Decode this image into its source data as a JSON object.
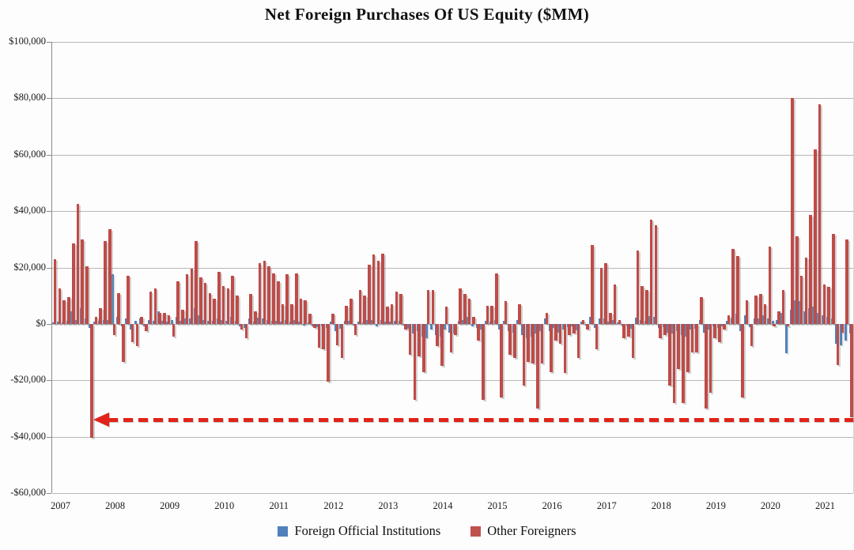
{
  "title": "Net Foreign Purchases Of US Equity ($MM)",
  "y_axis": {
    "labels": [
      {
        "text": "$100,000",
        "value": 100000
      },
      {
        "text": "$80,000",
        "value": 80000
      },
      {
        "text": "$60,000",
        "value": 60000
      },
      {
        "text": "$40,000",
        "value": 40000
      },
      {
        "text": "$20,000",
        "value": 20000
      },
      {
        "text": "$0",
        "value": 0
      },
      {
        "text": "-$20,000",
        "value": -20000
      },
      {
        "text": "-$40,000",
        "value": -40000
      },
      {
        "text": "-$60,000",
        "value": -60000
      }
    ]
  },
  "x_axis": {
    "labels": [
      "2007",
      "2008",
      "2009",
      "2010",
      "2011",
      "2012",
      "2013",
      "2014",
      "2015",
      "2016",
      "2017",
      "2018",
      "2019",
      "2020",
      "2021"
    ]
  },
  "legend": [
    {
      "label": "Foreign Official Institutions",
      "color": "#4f81bd"
    },
    {
      "label": "Other Foreigners",
      "color": "#c0504d"
    }
  ],
  "colors": {
    "official_bar": "#4f81bd",
    "other_bar": "#bf4b48",
    "gridline": "#b7b7b7",
    "annotation_red": "#e2231a"
  },
  "chart_data": {
    "type": "bar",
    "title": "Net Foreign Purchases Of US Equity ($MM)",
    "unit": "$MM",
    "frequency": "monthly",
    "x_start": "2007-01",
    "x_end": "2021-08",
    "ylim": [
      -60000,
      100000
    ],
    "gridline_step": 20000,
    "grid": true,
    "legend_position": "bottom",
    "series": [
      {
        "name": "Foreign Official Institutions",
        "color": "#4f81bd",
        "values": [
          500,
          800,
          600,
          1200,
          4500,
          1500,
          5500,
          2000,
          -1500,
          800,
          1000,
          1500,
          1500,
          17500,
          2500,
          -1000,
          1800,
          -2000,
          1200,
          2000,
          -800,
          1500,
          1200,
          4500,
          1000,
          800,
          1500,
          2500,
          1200,
          1800,
          2000,
          5500,
          3000,
          1500,
          1000,
          1200,
          2000,
          1500,
          1000,
          2500,
          1200,
          -800,
          -1500,
          1800,
          900,
          2200,
          2000,
          1500,
          1200,
          1000,
          800,
          1500,
          900,
          1300,
          700,
          -500,
          600,
          -900,
          -1200,
          -800,
          -1500,
          800,
          -2500,
          -1800,
          1000,
          1200,
          -700,
          900,
          600,
          1500,
          1300,
          -900,
          1500,
          800,
          900,
          1200,
          1100,
          -600,
          -1800,
          -3500,
          -2500,
          -4500,
          -5000,
          -2000,
          -4000,
          -4500,
          -2000,
          -3000,
          -3500,
          1000,
          1500,
          2500,
          -800,
          -1500,
          -2000,
          1000,
          900,
          1500,
          -2000,
          1200,
          -2500,
          -3000,
          1500,
          -4000,
          -5000,
          -4500,
          -3500,
          -2500,
          2000,
          -2500,
          -1500,
          -3000,
          -2000,
          -1200,
          -900,
          -2200,
          800,
          -700,
          2500,
          -1500,
          1800,
          2000,
          900,
          1500,
          600,
          -1000,
          -800,
          -1800,
          2200,
          1500,
          1200,
          2800,
          2500,
          -1500,
          -1200,
          -3000,
          -3500,
          -2500,
          -4000,
          -4500,
          -2000,
          -1800,
          1500,
          -3000,
          -2000,
          -1000,
          -1500,
          -800,
          1000,
          2000,
          3500,
          -2500,
          3000,
          -1200,
          2000,
          1800,
          3000,
          2000,
          1000,
          1500,
          4000,
          -10500,
          5000,
          8500,
          8000,
          4500,
          5500,
          6000,
          4000,
          3000,
          2500,
          2000,
          -7000,
          -7500,
          -6000,
          -3500
        ]
      },
      {
        "name": "Other Foreigners",
        "color": "#bf4b48",
        "values": [
          23000,
          12500,
          8500,
          9500,
          28500,
          42500,
          30000,
          20500,
          -40500,
          2500,
          5500,
          29500,
          33500,
          -4000,
          11000,
          -13500,
          17000,
          -6500,
          -8000,
          2500,
          -2500,
          11500,
          12500,
          4000,
          4000,
          3000,
          -4500,
          15000,
          5000,
          17500,
          19500,
          29500,
          16500,
          14500,
          11000,
          9000,
          18500,
          13500,
          12500,
          17000,
          10000,
          -2000,
          -5000,
          10500,
          4500,
          21500,
          22500,
          20500,
          18000,
          15000,
          7000,
          17500,
          7000,
          18000,
          9000,
          8500,
          3500,
          -1500,
          -8500,
          -9000,
          -20500,
          3500,
          -7500,
          -12000,
          6500,
          9000,
          -4000,
          12000,
          10000,
          21000,
          24500,
          22500,
          25000,
          6000,
          7000,
          11500,
          10500,
          -2000,
          -11000,
          -27000,
          -11500,
          -17000,
          12000,
          12000,
          -8000,
          -15000,
          6000,
          -10000,
          -4000,
          12500,
          10500,
          9000,
          2500,
          -6000,
          -27000,
          6500,
          6500,
          18000,
          -26000,
          8000,
          -11000,
          -12000,
          7000,
          -22000,
          -13500,
          -14000,
          -30000,
          -14000,
          4000,
          -17000,
          -6000,
          -7000,
          -17500,
          -4000,
          -3500,
          -12000,
          1500,
          -2000,
          28000,
          -9000,
          20000,
          21500,
          4000,
          14000,
          1500,
          -5000,
          -4500,
          -12000,
          26000,
          13500,
          12000,
          37000,
          35000,
          -5000,
          -4000,
          -22000,
          -28000,
          -16000,
          -28000,
          -17000,
          -10000,
          -10000,
          9500,
          -30000,
          -24500,
          -5000,
          -6500,
          -2000,
          3000,
          26500,
          24000,
          -26000,
          8500,
          -8000,
          10000,
          10500,
          7000,
          27500,
          -1000,
          4500,
          12000,
          -1000,
          80000,
          31000,
          17000,
          23500,
          38500,
          62000,
          78000,
          14000,
          13000,
          32000,
          -14500,
          -3000,
          30000,
          -33000
        ]
      }
    ],
    "annotation": {
      "type": "dashed-arrow",
      "direction": "left",
      "value": -34000,
      "from_month_index": 175,
      "points_to_month_index": 8,
      "color": "#e2231a"
    }
  }
}
